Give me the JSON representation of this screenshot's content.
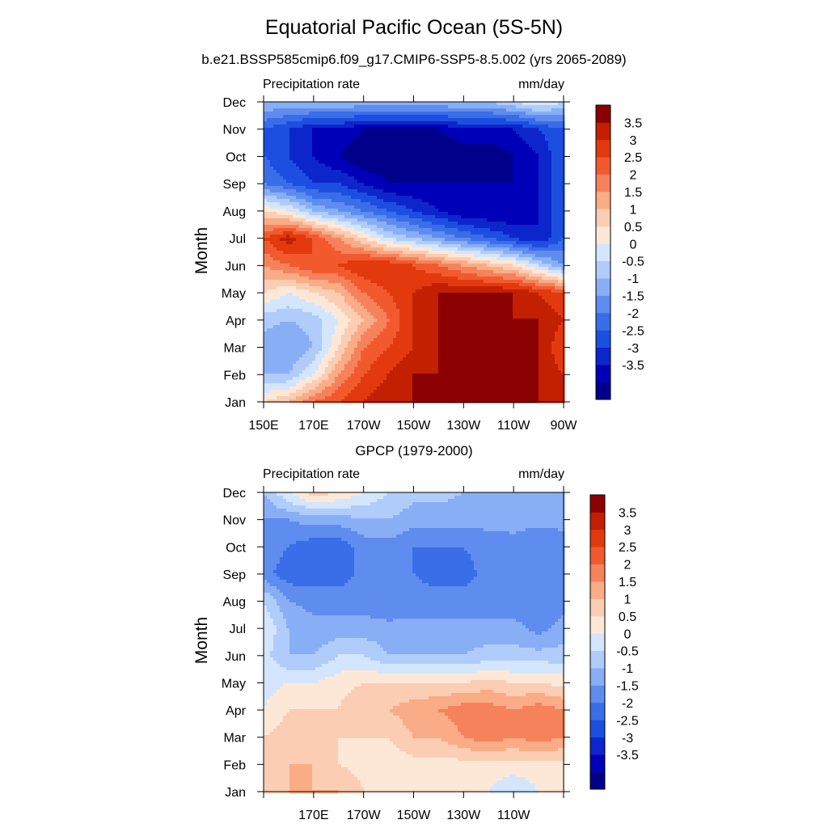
{
  "title": "Equatorial Pacific Ocean (5S-5N)",
  "subtitle": "b.e21.BSSP585cmip6.f09_g17.CMIP6-SSP5-8.5.002 (yrs 2065-2089)",
  "colors": {
    "levels": [
      "#00008b",
      "#0000b8",
      "#0c26cc",
      "#1c4fe0",
      "#3a6ee8",
      "#5f8cef",
      "#88aef5",
      "#b0ccfa",
      "#d4e6fd",
      "#fde8d8",
      "#fbcdb2",
      "#f9ac86",
      "#f6825c",
      "#f25a2e",
      "#e23a0e",
      "#c22000",
      "#8b0000"
    ]
  },
  "chart_data": [
    {
      "type": "heatmap",
      "name": "",
      "panel_title": "",
      "left_label": "Precipitation rate",
      "right_label": "mm/day",
      "ylabel": "Month",
      "xlabel": "",
      "x_ticks": [
        "150E",
        "170E",
        "170W",
        "150W",
        "130W",
        "110W",
        "90W"
      ],
      "y_ticks": [
        "Jan",
        "Feb",
        "Mar",
        "Apr",
        "May",
        "Jun",
        "Jul",
        "Aug",
        "Sep",
        "Oct",
        "Nov",
        "Dec"
      ],
      "x_range": [
        150,
        270
      ],
      "y_range": [
        1,
        12
      ],
      "colorbar_labels": [
        "3.5",
        "3",
        "2.5",
        "2",
        "1.5",
        "1",
        "0.5",
        "0",
        "-0.5",
        "-1",
        "-1.5",
        "-2",
        "-2.5",
        "-3",
        "-3.5"
      ],
      "grid": [
        [
          1,
          1.5,
          2.5,
          3,
          3.5,
          4,
          4,
          4,
          4,
          4,
          4,
          4,
          3.5
        ],
        [
          -0.5,
          -0.5,
          0.5,
          2,
          3,
          3.5,
          4,
          4,
          4,
          4,
          4,
          4,
          3.5
        ],
        [
          -0.8,
          -1,
          -0.5,
          1,
          2.5,
          3,
          3.5,
          4,
          4,
          4,
          4,
          4,
          3
        ],
        [
          -0.3,
          -0.5,
          -0.3,
          0.5,
          1.5,
          2.5,
          3.5,
          4,
          4,
          4,
          4,
          4,
          3.5
        ],
        [
          1,
          0.5,
          1,
          1.5,
          2.5,
          3,
          3.5,
          4,
          4,
          4,
          4,
          3.5,
          3
        ],
        [
          2,
          2.5,
          3,
          3,
          3.5,
          3.5,
          3,
          2.5,
          2,
          1.5,
          1,
          0,
          -1
        ],
        [
          3,
          3.8,
          3,
          2,
          1,
          0,
          -0.5,
          -1,
          -1.5,
          -2,
          -2.5,
          -3,
          -2
        ],
        [
          1,
          0.5,
          -0.5,
          -1,
          -1.5,
          -2,
          -2.5,
          -3,
          -3.5,
          -3.5,
          -3.5,
          -3,
          -2
        ],
        [
          -1.5,
          -2,
          -2.5,
          -2.5,
          -3,
          -3.5,
          -3.5,
          -3.5,
          -3.5,
          -3.5,
          -3.5,
          -3,
          -2
        ],
        [
          -2,
          -2.5,
          -3,
          -3.5,
          -4,
          -4,
          -4,
          -4,
          -4,
          -4,
          -3.5,
          -3,
          -2
        ],
        [
          -2,
          -2.5,
          -3,
          -3,
          -3.5,
          -3.5,
          -3.5,
          -3.5,
          -3,
          -3,
          -3,
          -2.5,
          -2
        ],
        [
          -0.5,
          -0.5,
          -0.5,
          -0.5,
          -0.5,
          -0.5,
          -0.5,
          -0.5,
          -0.5,
          -0.5,
          0,
          0.5,
          0
        ]
      ]
    },
    {
      "type": "heatmap",
      "name": "GPCP (1979-2000)",
      "panel_title": "GPCP (1979-2000)",
      "left_label": "Precipitation rate",
      "right_label": "mm/day",
      "ylabel": "Month",
      "xlabel": "",
      "x_ticks": [
        "",
        "170E",
        "170W",
        "150W",
        "130W",
        "110W",
        ""
      ],
      "y_ticks": [
        "Jan",
        "Feb",
        "Mar",
        "Apr",
        "May",
        "Jun",
        "Jul",
        "Aug",
        "Sep",
        "Oct",
        "Nov",
        "Dec"
      ],
      "x_range": [
        150,
        270
      ],
      "y_range": [
        1,
        12
      ],
      "colorbar_labels": [
        "3.5",
        "3",
        "2.5",
        "2",
        "1.5",
        "1",
        "0.5",
        "0",
        "-0.5",
        "-1",
        "-1.5",
        "-2",
        "-2.5",
        "-3",
        "-3.5"
      ],
      "grid": [
        [
          1,
          1.5,
          1.5,
          1.5,
          1,
          0.5,
          0.5,
          0.5,
          0.5,
          0.5,
          0,
          0.5,
          0.5
        ],
        [
          1,
          1.5,
          1.5,
          1,
          0.8,
          0.7,
          0.8,
          0.8,
          0.8,
          0.8,
          0.8,
          0.8,
          0.8
        ],
        [
          1,
          1.3,
          1.3,
          1,
          1,
          1,
          1.5,
          1.5,
          2,
          2.3,
          2,
          2.3,
          2
        ],
        [
          0.5,
          1,
          1,
          1,
          1.5,
          1.5,
          1.8,
          2,
          2.3,
          2.3,
          2,
          2.3,
          2
        ],
        [
          0.3,
          0.5,
          0.5,
          0.8,
          1,
          1,
          1,
          1,
          1,
          1.2,
          1,
          1,
          0.8
        ],
        [
          0.2,
          -0.5,
          -0.5,
          0,
          0,
          -0.5,
          -0.5,
          -0.5,
          -0.5,
          -0.3,
          -0.3,
          -0.3,
          -0.3
        ],
        [
          0.5,
          -0.5,
          -0.8,
          -0.8,
          -0.8,
          -0.8,
          -0.8,
          -0.8,
          -0.8,
          -0.8,
          -0.8,
          -1.2,
          -0.8
        ],
        [
          0,
          -1,
          -1.2,
          -1.2,
          -1.2,
          -1.5,
          -1.3,
          -1.3,
          -1.3,
          -1.3,
          -1.3,
          -1.5,
          -1.2
        ],
        [
          -1.3,
          -1.8,
          -1.8,
          -1.8,
          -1.3,
          -1.2,
          -1.5,
          -1.7,
          -1.7,
          -1.3,
          -1.3,
          -1.5,
          -1.3
        ],
        [
          -1.2,
          -1.5,
          -1.8,
          -1.8,
          -1.3,
          -1.2,
          -1.5,
          -1.5,
          -1.5,
          -1.3,
          -1.2,
          -1.5,
          -1.3
        ],
        [
          -1,
          -1,
          -0.8,
          -0.8,
          -0.5,
          -0.5,
          -0.8,
          -0.8,
          -0.8,
          -0.8,
          -0.8,
          -0.8,
          -0.8
        ],
        [
          -0.5,
          0.5,
          1.3,
          1,
          0.5,
          0,
          -0.3,
          -0.3,
          -0.5,
          -0.5,
          -0.5,
          -0.5,
          -0.5
        ]
      ]
    }
  ]
}
